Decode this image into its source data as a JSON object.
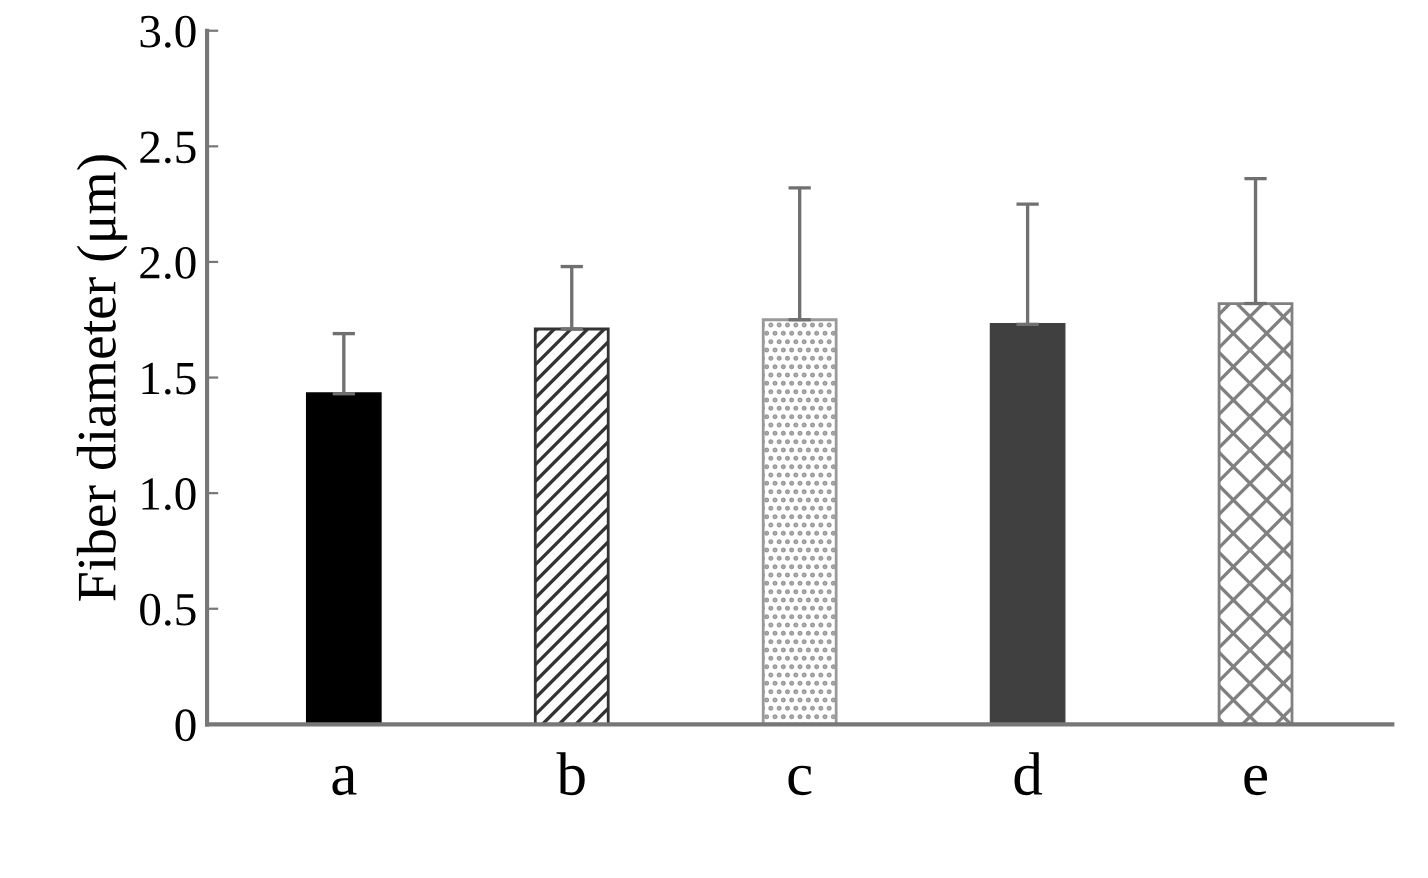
{
  "chart_data": {
    "type": "bar",
    "ylabel": "Fiber diameter (μm)",
    "categories": [
      "a",
      "b",
      "c",
      "d",
      "e"
    ],
    "values": [
      1.43,
      1.71,
      1.75,
      1.73,
      1.82
    ],
    "errors": [
      [
        1.43,
        1.69
      ],
      [
        1.71,
        1.98
      ],
      [
        1.75,
        2.32
      ],
      [
        1.73,
        2.25
      ],
      [
        1.82,
        2.36
      ]
    ],
    "colors": [
      "#000000",
      "#333333",
      "#999999",
      "#404040",
      "#808080"
    ],
    "ylim": [
      0,
      3.0
    ],
    "yticks": [
      0,
      0.5,
      {
        "value": 1.0,
        "label": "1.0"
      },
      1.5,
      {
        "value": 2.0,
        "label": "2.0"
      },
      2.5,
      {
        "value": 3.0,
        "label": "3.0"
      }
    ],
    "grid": false
  }
}
